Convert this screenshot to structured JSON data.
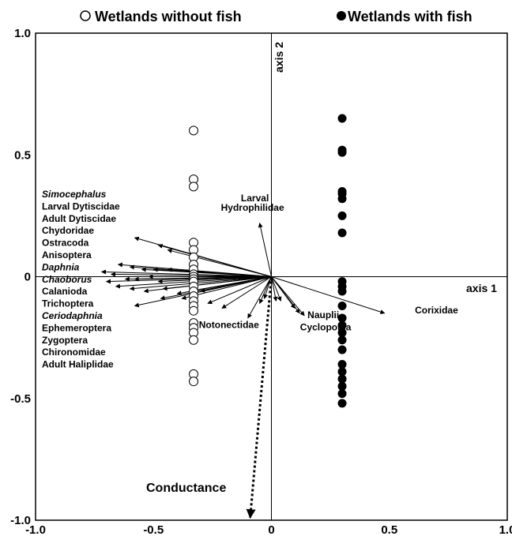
{
  "chart_data": {
    "type": "scatter",
    "xlim": [
      -1.0,
      1.0
    ],
    "ylim": [
      -1.0,
      1.0
    ],
    "x_ticks": [
      "-1.0",
      "-0.5",
      "0",
      "0.5",
      "1.0"
    ],
    "y_ticks": [
      "1.0",
      "0.5",
      "0",
      "-0.5",
      "-1.0"
    ],
    "x_tick_values": [
      -1.0,
      -0.5,
      0,
      0.5,
      1.0
    ],
    "y_tick_values": [
      1.0,
      0.5,
      0,
      -0.5,
      -1.0
    ],
    "axis1_label": "axis 1",
    "axis2_label": "axis 2",
    "legend": [
      {
        "symbol": "open-circle",
        "label": "Wetlands without fish"
      },
      {
        "symbol": "filled-circle",
        "label": "Wetlands with fish"
      }
    ],
    "sites_without_fish": {
      "x": -0.33,
      "y": [
        0.6,
        0.4,
        0.37,
        0.14,
        0.11,
        0.08,
        0.05,
        0.03,
        0.01,
        0.0,
        -0.01,
        -0.02,
        -0.04,
        -0.06,
        -0.08,
        -0.1,
        -0.12,
        -0.14,
        -0.19,
        -0.21,
        -0.23,
        -0.26,
        -0.4,
        -0.43
      ]
    },
    "sites_with_fish": {
      "x": 0.3,
      "y": [
        0.65,
        0.52,
        0.51,
        0.35,
        0.34,
        0.32,
        0.25,
        0.18,
        -0.02,
        -0.04,
        -0.06,
        -0.12,
        -0.17,
        -0.2,
        -0.23,
        -0.26,
        -0.3,
        -0.36,
        -0.39,
        -0.42,
        -0.45,
        -0.48,
        -0.52
      ]
    },
    "species_vectors": [
      {
        "x": -0.58,
        "y": 0.16
      },
      {
        "x": -0.48,
        "y": 0.13
      },
      {
        "x": -0.44,
        "y": 0.11
      },
      {
        "x": -0.65,
        "y": 0.05
      },
      {
        "x": -0.6,
        "y": 0.04
      },
      {
        "x": -0.55,
        "y": 0.03
      },
      {
        "x": -0.5,
        "y": 0.03
      },
      {
        "x": -0.44,
        "y": 0.03
      },
      {
        "x": -0.72,
        "y": 0.02
      },
      {
        "x": -0.68,
        "y": 0.01
      },
      {
        "x": -0.62,
        "y": -0.01
      },
      {
        "x": -0.58,
        "y": -0.01
      },
      {
        "x": -0.52,
        "y": 0.0
      },
      {
        "x": -0.48,
        "y": -0.02
      },
      {
        "x": -0.7,
        "y": -0.02
      },
      {
        "x": -0.66,
        "y": -0.04
      },
      {
        "x": -0.6,
        "y": -0.05
      },
      {
        "x": -0.54,
        "y": -0.06
      },
      {
        "x": -0.46,
        "y": -0.05
      },
      {
        "x": -0.4,
        "y": -0.07
      },
      {
        "x": -0.35,
        "y": -0.06
      },
      {
        "x": -0.3,
        "y": -0.06
      },
      {
        "x": -0.58,
        "y": -0.12
      },
      {
        "x": -0.47,
        "y": -0.09
      },
      {
        "x": -0.38,
        "y": -0.09
      },
      {
        "x": -0.27,
        "y": -0.11
      },
      {
        "x": -0.21,
        "y": -0.13
      },
      {
        "x": -0.1,
        "y": -0.17
      },
      {
        "x": -0.05,
        "y": -0.11
      },
      {
        "x": -0.03,
        "y": -0.09
      },
      {
        "x": 0.02,
        "y": -0.1
      },
      {
        "x": 0.04,
        "y": -0.1
      },
      {
        "x": 0.1,
        "y": -0.13
      },
      {
        "x": 0.12,
        "y": -0.15
      },
      {
        "x": 0.14,
        "y": -0.16
      },
      {
        "x": 0.48,
        "y": -0.15
      },
      {
        "x": -0.05,
        "y": 0.22
      }
    ],
    "conductance_vector": {
      "x": -0.09,
      "y": -0.99
    },
    "species_labels": [
      {
        "text": "Simocephalus",
        "italic": true
      },
      {
        "text": "Larval Dytiscidae",
        "italic": false
      },
      {
        "text": "Adult Dytiscidae",
        "italic": false
      },
      {
        "text": "Chydoridae",
        "italic": false
      },
      {
        "text": "Ostracoda",
        "italic": false
      },
      {
        "text": "Anisoptera",
        "italic": false
      },
      {
        "text": "Daphnia",
        "italic": true
      },
      {
        "text": "Chaoborus",
        "italic": true
      },
      {
        "text": "Calanioda",
        "italic": false
      },
      {
        "text": "Trichoptera",
        "italic": false
      },
      {
        "text": "Ceriodaphnia",
        "italic": true
      },
      {
        "text": "Ephemeroptera",
        "italic": false
      },
      {
        "text": "Zygoptera",
        "italic": false
      },
      {
        "text": "Chironomidae",
        "italic": false
      },
      {
        "text": "Adult Haliplidae",
        "italic": false
      }
    ],
    "annotations": [
      {
        "text": "Larval",
        "x": -0.07,
        "y": 0.31
      },
      {
        "text": "Hydrophilidae",
        "x": -0.08,
        "y": 0.27
      },
      {
        "text": "Notonectidae",
        "x": -0.18,
        "y": -0.21
      },
      {
        "text": "Nauplii",
        "x": 0.22,
        "y": -0.17
      },
      {
        "text": "Cyclopoida",
        "x": 0.23,
        "y": -0.22
      },
      {
        "text": "Corixidae",
        "x": 0.7,
        "y": -0.15
      }
    ],
    "conductance_label": "Conductance"
  }
}
